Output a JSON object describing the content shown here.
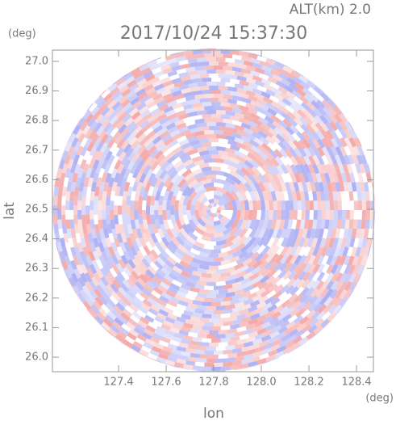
{
  "chart_data": {
    "type": "ppi",
    "title": "2017/10/24 15:37:30",
    "annotation": "ALT(km)  2.0",
    "xlabel": "lon",
    "ylabel": "lat",
    "x_unit": "(deg)",
    "y_unit": "(deg)",
    "xlim": [
      127.122,
      128.471
    ],
    "ylim": [
      25.951,
      27.038
    ],
    "xticks": [
      127.4,
      127.6,
      127.8,
      {
        "value": 128,
        "label": "128.0"
      },
      128.2,
      128.4
    ],
    "yticks": [
      {
        "value": 26,
        "label": "26.0"
      },
      26.1,
      26.2,
      26.3,
      26.4,
      26.5,
      26.6,
      26.7,
      26.8,
      26.9,
      {
        "value": 27,
        "label": "27.0"
      }
    ]
  }
}
